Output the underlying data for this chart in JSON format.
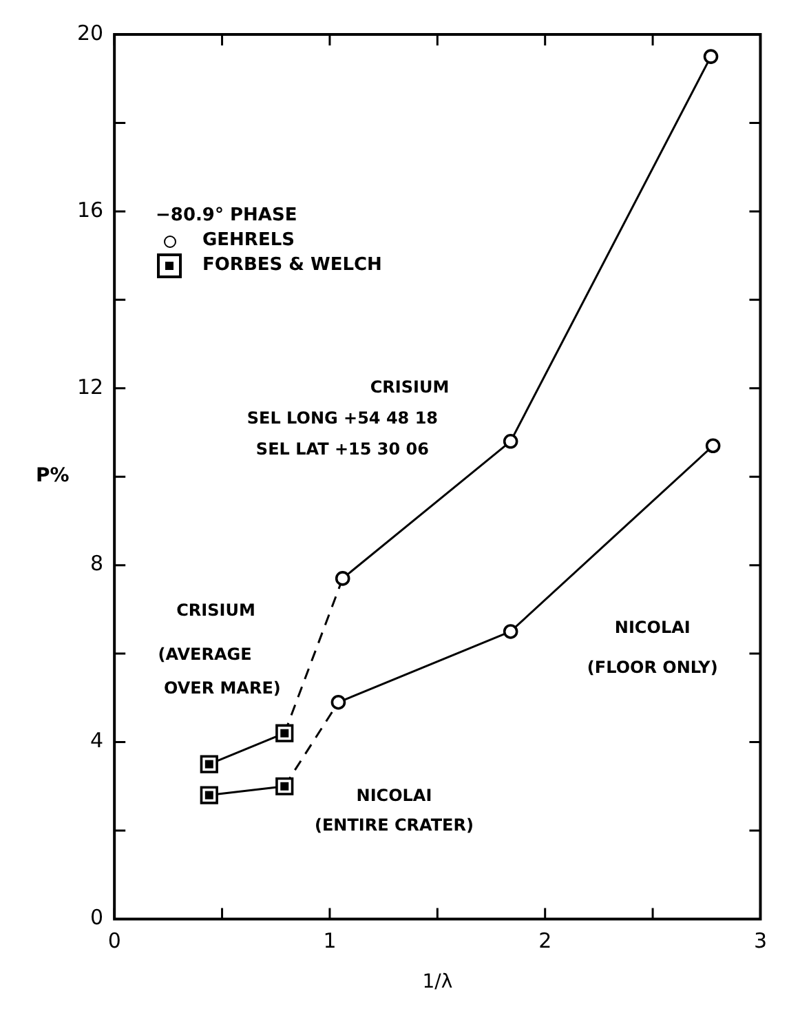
{
  "chart_data": {
    "type": "line",
    "xlabel": "1/λ",
    "ylabel": "P%",
    "legend_title": "−80.9° PHASE",
    "legend": "top left",
    "xlim": [
      0,
      3
    ],
    "xticks": [
      0,
      {
        "value": 0.5,
        "label": null
      },
      1,
      {
        "value": 1.5,
        "label": null
      },
      2,
      {
        "value": 2.5,
        "label": null
      },
      3
    ],
    "ylim": [
      0,
      20
    ],
    "yticks": [
      0,
      {
        "value": 2,
        "label": null
      },
      4,
      {
        "value": 6,
        "label": null
      },
      8,
      {
        "value": 10,
        "label": null
      },
      12,
      {
        "value": 14,
        "label": null
      },
      16,
      {
        "value": 18,
        "label": null
      },
      20
    ],
    "series": [
      {
        "name": "GEHRELS",
        "color": "#000000",
        "marker": "circle",
        "line_style": "solid",
        "x": [
          1.06,
          1.84,
          2.77
        ],
        "values": [
          7.7,
          10.8,
          19.5
        ]
      },
      {
        "color": "#000000",
        "marker": "circle",
        "line_style": "solid",
        "x": [
          1.04,
          1.84,
          2.78
        ],
        "values": [
          4.9,
          6.5,
          10.7
        ]
      },
      {
        "name": "FORBES & WELCH",
        "color": "#000000",
        "marker": "square",
        "line_style": "solid",
        "x": [
          0.44,
          0.79
        ],
        "values": [
          3.5,
          4.2
        ]
      },
      {
        "color": "#000000",
        "marker": "square",
        "line_style": "solid",
        "x": [
          0.44,
          0.79
        ],
        "values": [
          2.8,
          3.0
        ]
      },
      {
        "color": "#000000",
        "line_style": "dashed",
        "x": [
          0.79,
          1.06
        ],
        "values": [
          4.2,
          7.7
        ]
      },
      {
        "color": "#000000",
        "line_style": "dashed",
        "x": [
          0.79,
          1.04
        ],
        "values": [
          3.0,
          4.9
        ]
      }
    ],
    "annotations": [
      "CRISIUM",
      "SEL LONG +54 48 18",
      "SEL LAT +15 30 06",
      "CRISIUM",
      "(AVERAGE",
      "OVER MARE)",
      "NICOLAI",
      "(FLOOR ONLY)",
      "NICOLAI",
      "(ENTIRE CRATER)"
    ]
  }
}
